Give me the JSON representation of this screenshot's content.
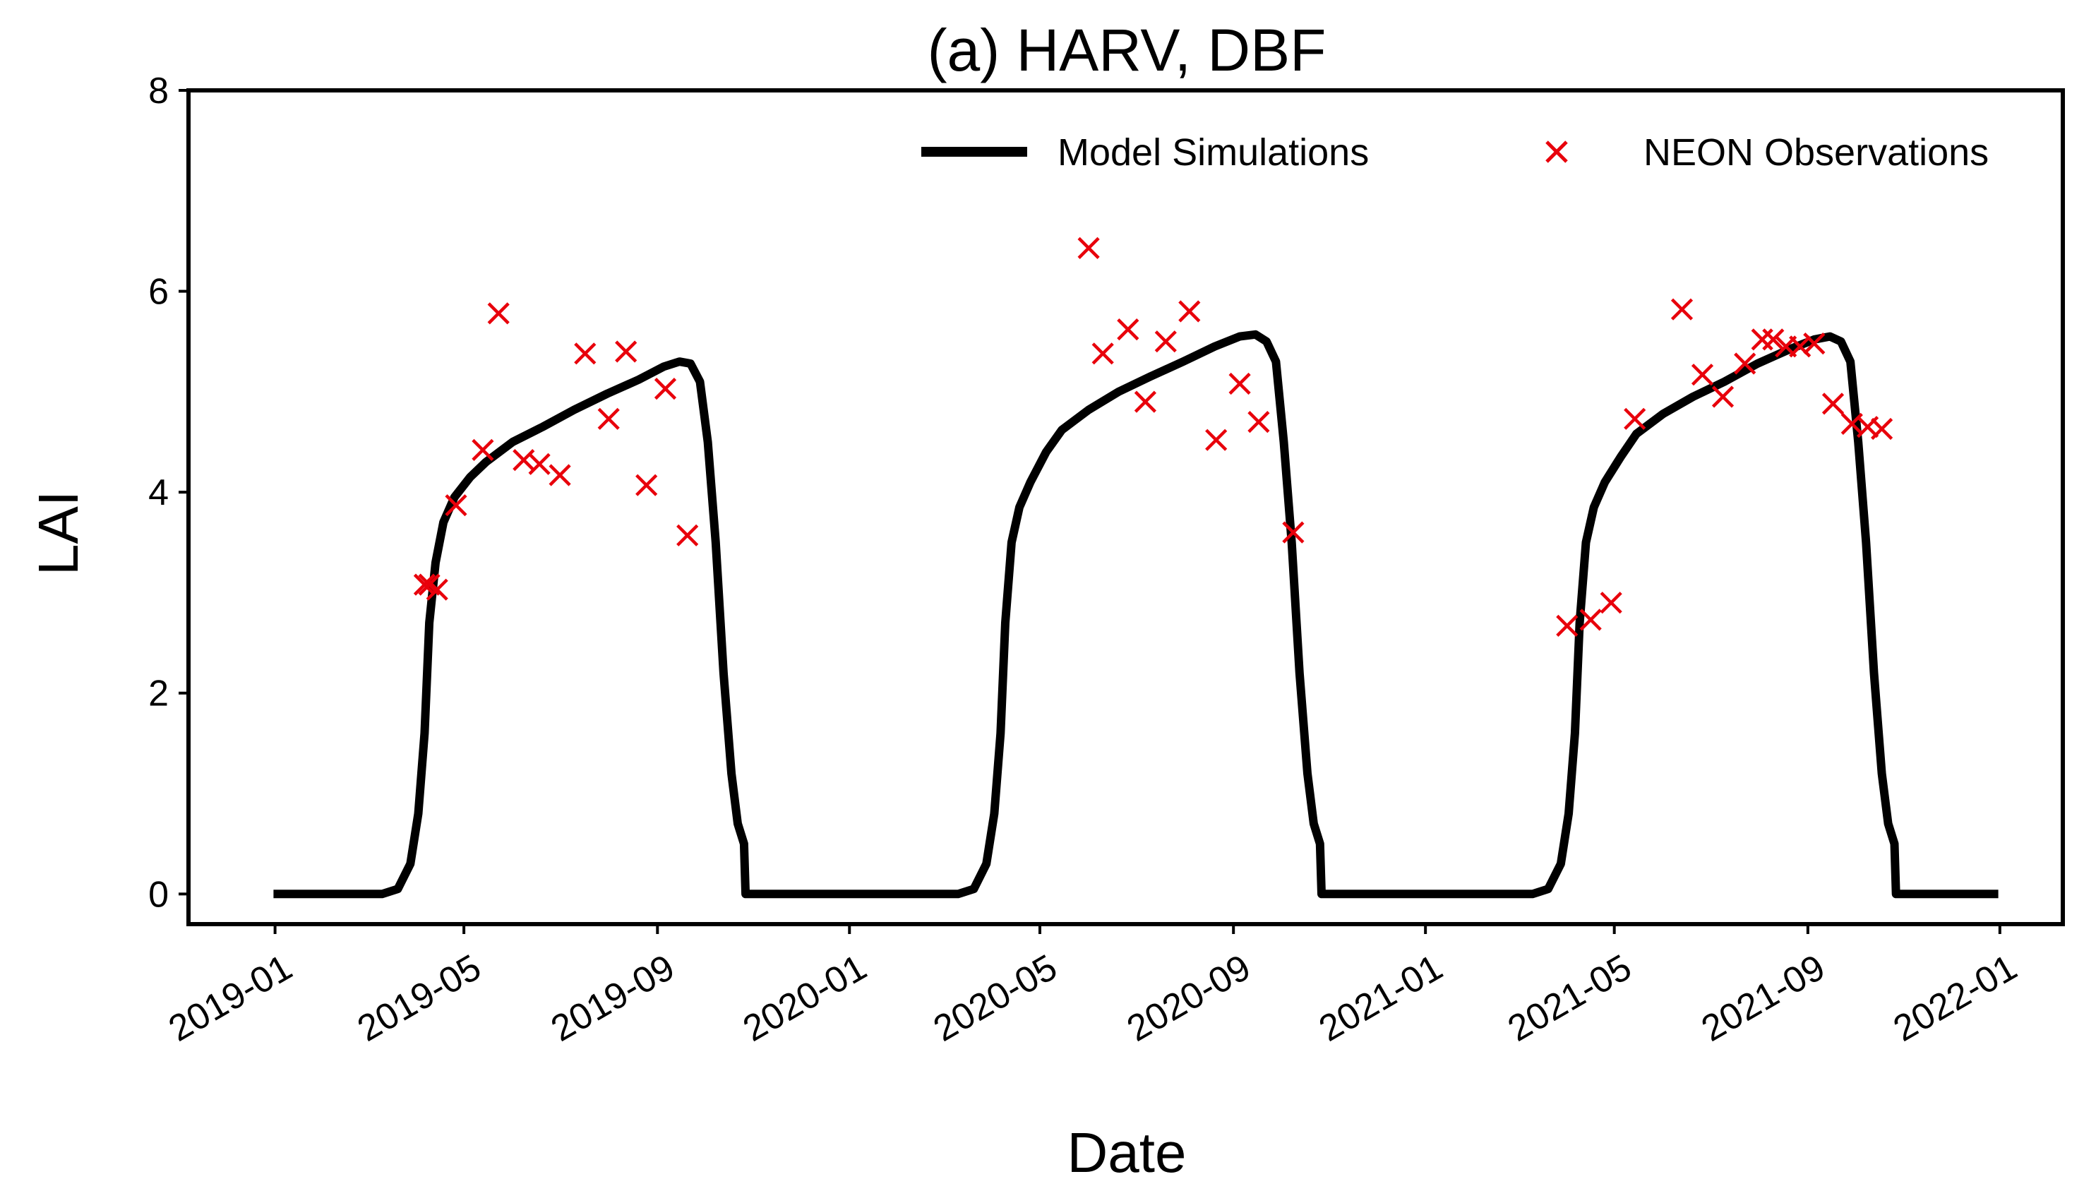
{
  "chart_data": {
    "type": "line",
    "title": "(a) HARV, DBF",
    "xlabel": "Date",
    "ylabel": "LAI",
    "xlim": [
      "2018-11-07",
      "2022-02-10"
    ],
    "ylim": [
      -0.3,
      8
    ],
    "x_ticks": [
      "2019-01",
      "2019-05",
      "2019-09",
      "2020-01",
      "2020-05",
      "2020-09",
      "2021-01",
      "2021-05",
      "2021-09",
      "2022-01"
    ],
    "y_ticks": [
      0,
      2,
      4,
      6,
      8
    ],
    "grid": false,
    "legend_position": "top-right",
    "colors": {
      "model": "#000000",
      "observations": "#e8000b"
    },
    "series": [
      {
        "name": "Model Simulations",
        "kind": "line",
        "points": [
          [
            "2018-12-31",
            0
          ],
          [
            "2019-03-10",
            0
          ],
          [
            "2019-03-20",
            0.05
          ],
          [
            "2019-03-28",
            0.3
          ],
          [
            "2019-04-02",
            0.8
          ],
          [
            "2019-04-06",
            1.6
          ],
          [
            "2019-04-09",
            2.7
          ],
          [
            "2019-04-13",
            3.3
          ],
          [
            "2019-04-18",
            3.7
          ],
          [
            "2019-04-25",
            3.95
          ],
          [
            "2019-05-05",
            4.15
          ],
          [
            "2019-05-15",
            4.3
          ],
          [
            "2019-06-01",
            4.5
          ],
          [
            "2019-06-20",
            4.65
          ],
          [
            "2019-07-10",
            4.82
          ],
          [
            "2019-07-31",
            4.98
          ],
          [
            "2019-08-20",
            5.12
          ],
          [
            "2019-09-05",
            5.25
          ],
          [
            "2019-09-15",
            5.3
          ],
          [
            "2019-09-22",
            5.28
          ],
          [
            "2019-09-28",
            5.1
          ],
          [
            "2019-10-03",
            4.5
          ],
          [
            "2019-10-08",
            3.5
          ],
          [
            "2019-10-13",
            2.2
          ],
          [
            "2019-10-18",
            1.2
          ],
          [
            "2019-10-22",
            0.7
          ],
          [
            "2019-10-26",
            0.5
          ],
          [
            "2019-10-27",
            0
          ],
          [
            "2020-03-10",
            0
          ],
          [
            "2020-03-20",
            0.05
          ],
          [
            "2020-03-28",
            0.3
          ],
          [
            "2020-04-02",
            0.8
          ],
          [
            "2020-04-06",
            1.6
          ],
          [
            "2020-04-09",
            2.7
          ],
          [
            "2020-04-13",
            3.5
          ],
          [
            "2020-04-18",
            3.85
          ],
          [
            "2020-04-25",
            4.1
          ],
          [
            "2020-05-05",
            4.4
          ],
          [
            "2020-05-15",
            4.62
          ],
          [
            "2020-06-01",
            4.82
          ],
          [
            "2020-06-20",
            5.0
          ],
          [
            "2020-07-10",
            5.15
          ],
          [
            "2020-07-31",
            5.3
          ],
          [
            "2020-08-20",
            5.45
          ],
          [
            "2020-09-05",
            5.55
          ],
          [
            "2020-09-15",
            5.57
          ],
          [
            "2020-09-22",
            5.5
          ],
          [
            "2020-09-28",
            5.3
          ],
          [
            "2020-10-03",
            4.5
          ],
          [
            "2020-10-08",
            3.5
          ],
          [
            "2020-10-13",
            2.2
          ],
          [
            "2020-10-18",
            1.2
          ],
          [
            "2020-10-22",
            0.7
          ],
          [
            "2020-10-26",
            0.5
          ],
          [
            "2020-10-27",
            0
          ],
          [
            "2021-03-10",
            0
          ],
          [
            "2021-03-20",
            0.05
          ],
          [
            "2021-03-28",
            0.3
          ],
          [
            "2021-04-02",
            0.8
          ],
          [
            "2021-04-06",
            1.6
          ],
          [
            "2021-04-09",
            2.7
          ],
          [
            "2021-04-13",
            3.5
          ],
          [
            "2021-04-18",
            3.85
          ],
          [
            "2021-04-25",
            4.1
          ],
          [
            "2021-05-05",
            4.35
          ],
          [
            "2021-05-15",
            4.58
          ],
          [
            "2021-06-01",
            4.78
          ],
          [
            "2021-06-20",
            4.95
          ],
          [
            "2021-07-10",
            5.1
          ],
          [
            "2021-07-31",
            5.28
          ],
          [
            "2021-08-20",
            5.42
          ],
          [
            "2021-09-05",
            5.52
          ],
          [
            "2021-09-15",
            5.55
          ],
          [
            "2021-09-22",
            5.5
          ],
          [
            "2021-09-28",
            5.3
          ],
          [
            "2021-10-03",
            4.5
          ],
          [
            "2021-10-08",
            3.5
          ],
          [
            "2021-10-13",
            2.2
          ],
          [
            "2021-10-18",
            1.2
          ],
          [
            "2021-10-22",
            0.7
          ],
          [
            "2021-10-26",
            0.5
          ],
          [
            "2021-10-27",
            0
          ],
          [
            "2021-12-31",
            0
          ]
        ]
      },
      {
        "name": "NEON Observations",
        "kind": "scatter",
        "marker": "x",
        "points": [
          [
            "2019-04-06",
            3.08
          ],
          [
            "2019-04-09",
            3.08
          ],
          [
            "2019-04-14",
            3.03
          ],
          [
            "2019-04-26",
            3.87
          ],
          [
            "2019-05-13",
            4.42
          ],
          [
            "2019-05-23",
            5.78
          ],
          [
            "2019-06-08",
            4.32
          ],
          [
            "2019-06-18",
            4.28
          ],
          [
            "2019-07-01",
            4.17
          ],
          [
            "2019-07-17",
            5.38
          ],
          [
            "2019-08-01",
            4.73
          ],
          [
            "2019-08-12",
            5.4
          ],
          [
            "2019-08-25",
            4.07
          ],
          [
            "2019-09-06",
            5.03
          ],
          [
            "2019-09-20",
            3.57
          ],
          [
            "2020-06-01",
            6.43
          ],
          [
            "2020-06-10",
            5.38
          ],
          [
            "2020-06-26",
            5.62
          ],
          [
            "2020-07-07",
            4.9
          ],
          [
            "2020-07-20",
            5.5
          ],
          [
            "2020-08-04",
            5.8
          ],
          [
            "2020-08-21",
            4.52
          ],
          [
            "2020-09-05",
            5.08
          ],
          [
            "2020-09-17",
            4.7
          ],
          [
            "2020-10-09",
            3.6
          ],
          [
            "2021-04-01",
            2.67
          ],
          [
            "2021-04-16",
            2.73
          ],
          [
            "2021-04-29",
            2.9
          ],
          [
            "2021-05-14",
            4.73
          ],
          [
            "2021-06-13",
            5.82
          ],
          [
            "2021-06-26",
            5.17
          ],
          [
            "2021-07-09",
            4.95
          ],
          [
            "2021-07-23",
            5.28
          ],
          [
            "2021-08-03",
            5.52
          ],
          [
            "2021-08-10",
            5.52
          ],
          [
            "2021-08-18",
            5.45
          ],
          [
            "2021-08-27",
            5.45
          ],
          [
            "2021-09-05",
            5.48
          ],
          [
            "2021-09-17",
            4.88
          ],
          [
            "2021-09-29",
            4.68
          ],
          [
            "2021-10-09",
            4.65
          ],
          [
            "2021-10-18",
            4.63
          ]
        ]
      }
    ]
  }
}
